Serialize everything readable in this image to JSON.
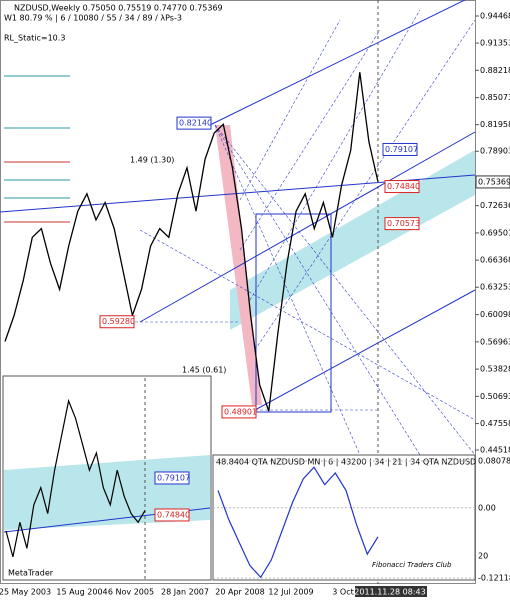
{
  "header": {
    "line1": "NZDUSD,Weekly  0.75050 0.75519 0.74770 0.75369",
    "line2": "W1  80.79 % | 6 / 10080 / 55 / 34 / 89 / λPs-3",
    "line3": "RL_Static=10.3"
  },
  "chart_data": {
    "type": "line",
    "color": "#000000",
    "values": [
      0.57,
      0.6,
      0.64,
      0.69,
      0.7,
      0.66,
      0.63,
      0.68,
      0.72,
      0.74,
      0.71,
      0.73,
      0.7,
      0.65,
      0.6,
      0.63,
      0.68,
      0.7,
      0.69,
      0.74,
      0.77,
      0.72,
      0.78,
      0.81,
      0.82,
      0.77,
      0.7,
      0.6,
      0.52,
      0.49,
      0.58,
      0.66,
      0.72,
      0.74,
      0.7,
      0.73,
      0.69,
      0.75,
      0.79,
      0.88,
      0.8,
      0.75369
    ],
    "ylim": [
      0.44518,
      0.94468
    ],
    "yticks": [
      0.94468,
      0.91353,
      0.88218,
      0.85073,
      0.81958,
      0.78903,
      0.72636,
      0.69501,
      0.66368,
      0.63253,
      0.60098,
      0.56963,
      0.53828,
      0.50693,
      0.47558,
      0.44518
    ],
    "current_price": 0.75369,
    "price_labels": [
      {
        "value": 0.8214,
        "label": "0.82140"
      },
      0.79107,
      {
        "value": 0.7484,
        "label": "0.74840"
      },
      0.70573,
      {
        "value": 0.5928,
        "label": "0.59280"
      },
      0.48901
    ],
    "xtick_labels": [
      "25 May 2003",
      "15 Aug 2004",
      "6 Nov 2005",
      "28 Jan 2007",
      "20 Apr 2008",
      "12 Jul 2009",
      "3 Oct",
      "2011.11.28 08:43"
    ],
    "annotations": [
      "1.49 (1.30)",
      "1.45 (0.61)"
    ]
  },
  "inset": {
    "ylim": [
      0.6734,
      0.9064
    ],
    "values": [
      0.73,
      0.7,
      0.74,
      0.71,
      0.76,
      0.78,
      0.75,
      0.8,
      0.84,
      0.88,
      0.86,
      0.83,
      0.8,
      0.82,
      0.78,
      0.76,
      0.8,
      0.77,
      0.75,
      0.74,
      0.75369
    ],
    "labels": [
      0.79107,
      {
        "value": 0.7484,
        "label": "0.74840"
      }
    ],
    "brand": "MetaTrader"
  },
  "oscillator": {
    "title": "48.8404  QTA NZDUSD MN | 6 | 43200 | 34 | 21 | 34  QTA NZDUSD",
    "ylim": [
      -0.12118,
      0.080783
    ],
    "yticks": [
      0.080783,
      {
        "value": 0,
        "label": "0.00"
      },
      -0.12118
    ],
    "level_label": "20",
    "values": [
      0.03,
      -0.02,
      -0.06,
      -0.1,
      -0.12,
      -0.09,
      -0.04,
      0.01,
      0.05,
      0.07,
      0.04,
      0.06,
      0.03,
      -0.03,
      -0.08,
      -0.05
    ],
    "credit": "Fibonacci Traders Club"
  }
}
